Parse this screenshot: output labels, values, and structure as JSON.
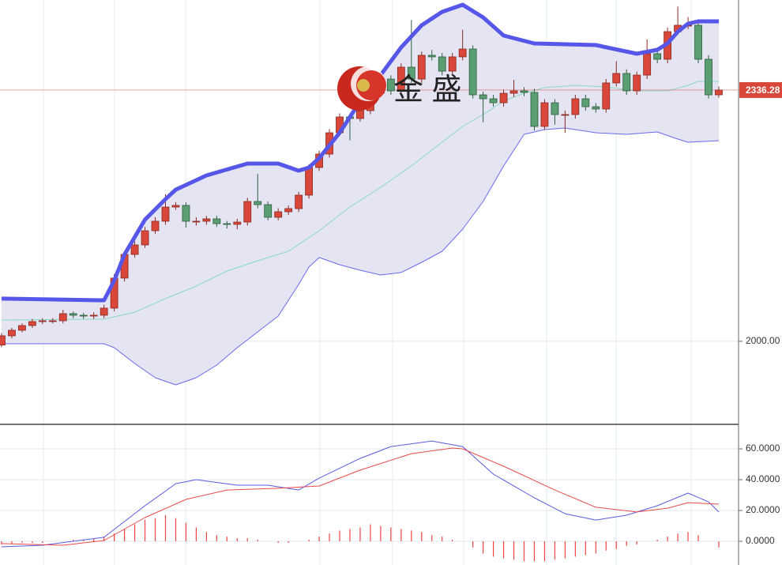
{
  "chart_data": [
    {
      "type": "candlestick",
      "watermark": "金 盛",
      "up_color": "#d9473b",
      "down_color": "#5c9e73",
      "open": [
        1995.0,
        2007.4,
        2014.8,
        2021.1,
        2026.4,
        2027.5,
        2027.5,
        2037.0,
        2034.9,
        2033.8,
        2034.9,
        2044.4,
        2084.6,
        2116.3,
        2129.0,
        2148.0,
        2160.7,
        2179.7,
        2181.9,
        2160.7,
        2160.7,
        2163.9,
        2157.5,
        2156.5,
        2159.6,
        2187.1,
        2182.9,
        2166.0,
        2173.4,
        2177.6,
        2195.6,
        2232.6,
        2250.6,
        2279.1,
        2300.3,
        2298.2,
        2308.7,
        2332.0,
        2351.0,
        2335.2,
        2366.9,
        2351.0,
        2382.8,
        2380.7,
        2361.6,
        2380.7,
        2391.2,
        2329.9,
        2324.6,
        2319.3,
        2332.0,
        2335.2,
        2333.1,
        2287.6,
        2319.3,
        2303.5,
        2303.5,
        2324.6,
        2314.0,
        2310.9,
        2345.8,
        2358.5,
        2335.2,
        2356.3,
        2384.9,
        2377.5,
        2414.5,
        2423.0,
        2423.0,
        2377.5,
        2329.9
      ],
      "high": [
        2011,
        2018,
        2024,
        2030,
        2031,
        2031,
        2042,
        2040,
        2038,
        2039,
        2049,
        2090,
        2121,
        2134,
        2153,
        2166,
        2197,
        2186,
        2186,
        2166,
        2168,
        2168,
        2161,
        2164,
        2192,
        2224,
        2187,
        2178,
        2182,
        2200,
        2237,
        2255,
        2284,
        2305,
        2305,
        2314,
        2337,
        2356,
        2356,
        2372,
        2430,
        2388,
        2390,
        2386,
        2386,
        2417,
        2396,
        2334,
        2330,
        2337,
        2350,
        2340,
        2338,
        2324,
        2324,
        2309,
        2330,
        2330,
        2319,
        2351,
        2375,
        2364,
        2361,
        2404,
        2390,
        2420,
        2448,
        2434,
        2428,
        2383,
        2341
      ],
      "low": [
        1992,
        2004,
        2012,
        2018,
        2023,
        2024,
        2024,
        2031,
        2030,
        2030,
        2031,
        2040,
        2080,
        2112,
        2125,
        2144,
        2156,
        2176,
        2152,
        2155,
        2156,
        2153,
        2151,
        2150,
        2155,
        2178,
        2162,
        2162,
        2169,
        2173,
        2191,
        2228,
        2246,
        2275,
        2269,
        2294,
        2304,
        2327,
        2330,
        2330,
        2346,
        2346,
        2376,
        2356,
        2356,
        2376,
        2325,
        2293,
        2314,
        2314,
        2327,
        2328,
        2282,
        2283,
        2290,
        2279,
        2298,
        2309,
        2306,
        2306,
        2341,
        2330,
        2330,
        2351,
        2372,
        2372,
        2410,
        2418,
        2372,
        2325,
        2326
      ],
      "close": [
        2007.4,
        2014.8,
        2021.1,
        2026.4,
        2027.5,
        2027.5,
        2037.0,
        2034.9,
        2033.8,
        2034.9,
        2044.4,
        2084.6,
        2116.3,
        2129.0,
        2148.0,
        2160.7,
        2179.7,
        2181.9,
        2160.7,
        2160.7,
        2163.9,
        2157.5,
        2156.5,
        2159.6,
        2187.1,
        2182.9,
        2166.0,
        2173.4,
        2177.6,
        2195.6,
        2232.6,
        2250.6,
        2279.1,
        2300.3,
        2298.2,
        2308.7,
        2332.0,
        2351.0,
        2335.2,
        2366.9,
        2351.0,
        2382.8,
        2380.7,
        2361.6,
        2380.7,
        2391.2,
        2329.9,
        2324.6,
        2319.3,
        2332.0,
        2335.2,
        2333.1,
        2287.6,
        2319.3,
        2303.5,
        2303.5,
        2324.6,
        2314.0,
        2310.9,
        2345.8,
        2358.5,
        2335.2,
        2356.3,
        2384.9,
        2377.5,
        2414.5,
        2423.0,
        2423.0,
        2377.5,
        2329.9,
        2336.28
      ],
      "bands": {
        "fill": "#e4e4f2",
        "upper": {
          "color": "#5656e8",
          "x": [
            0,
            10,
            11,
            12,
            14,
            16,
            17,
            20,
            24,
            27,
            29,
            30,
            31,
            33,
            35,
            37,
            39,
            41,
            43,
            45,
            47,
            49,
            52,
            58,
            62,
            64,
            65,
            66,
            67,
            68,
            70
          ],
          "values": [
            2057.1,
            2054.9,
            2081.4,
            2116.3,
            2162.8,
            2190.3,
            2203.0,
            2222.0,
            2237.9,
            2237.9,
            2228.4,
            2232.6,
            2245.3,
            2279.1,
            2321.4,
            2356.3,
            2393.3,
            2423.0,
            2440.9,
            2450.5,
            2433.5,
            2409.2,
            2398.6,
            2396.5,
            2384.9,
            2390.2,
            2398.6,
            2414.5,
            2425.1,
            2428.2,
            2428.2
          ]
        },
        "middle": {
          "color": "#8cd9c4",
          "x": [
            0,
            10,
            13,
            16,
            19,
            22,
            25,
            28,
            31,
            34,
            37,
            40,
            43,
            45,
            47,
            49,
            51,
            53,
            56,
            59,
            62,
            65,
            67,
            68,
            70
          ],
          "values": [
            2028.5,
            2029.6,
            2039.1,
            2057.1,
            2074.0,
            2094.1,
            2107.8,
            2120.5,
            2148.0,
            2179.7,
            2206.2,
            2234.7,
            2266.4,
            2287.6,
            2303.5,
            2321.4,
            2332.0,
            2339.4,
            2342.6,
            2340.5,
            2335.2,
            2335.2,
            2342.6,
            2347.9,
            2347.9
          ]
        },
        "lower": {
          "color": "#6a6aee",
          "x": [
            0,
            10,
            11,
            13,
            15,
            17,
            19,
            21,
            23,
            25,
            27,
            29,
            30,
            31,
            33,
            35,
            37,
            39,
            41,
            43,
            45,
            47,
            49,
            51,
            53,
            55,
            58,
            61,
            64,
            66,
            67,
            70
          ],
          "values": [
            1996.8,
            1996.8,
            1991.5,
            1970.3,
            1951.3,
            1941.8,
            1951.3,
            1968.2,
            1991.5,
            2012.6,
            2033.8,
            2076.1,
            2099.4,
            2112.1,
            2102.5,
            2095.1,
            2088.8,
            2092.0,
            2105.7,
            2120.5,
            2150.1,
            2187.1,
            2234.7,
            2277.0,
            2283.4,
            2285.5,
            2279.1,
            2277.0,
            2280.2,
            2270.7,
            2266.4,
            2268.6
          ]
        }
      },
      "xlim": [
        -0.15,
        71.93
      ],
      "ylim": [
        1891.0,
        2456.8
      ],
      "yticks": [
        {
          "value": 2000,
          "label": "2000.00"
        }
      ],
      "last_price": 2336.28,
      "last_price_color": "#d9473b"
    },
    {
      "type": "macd",
      "xlim": [
        -0.15,
        71.93
      ],
      "ylim": [
        -15.4,
        75.4
      ],
      "yticks": [
        {
          "value": 0,
          "label": "0.0000"
        },
        {
          "value": 20,
          "label": "20.0000"
        },
        {
          "value": 40,
          "label": "40.0000"
        },
        {
          "value": 60,
          "label": "60.0000"
        }
      ],
      "dif": {
        "color": "#5a5ae0",
        "x": [
          0,
          4,
          10,
          14,
          17,
          19,
          23,
          26,
          29,
          31,
          35,
          38,
          42,
          45,
          48,
          52,
          55,
          58,
          61,
          64,
          67,
          69,
          70
        ],
        "values": [
          -3.6,
          -2.6,
          2.6,
          23.1,
          37.4,
          40.0,
          36.4,
          36.4,
          33.3,
          41.0,
          53.8,
          61.5,
          65.1,
          61.5,
          43.6,
          28.2,
          17.9,
          13.8,
          16.9,
          23.1,
          31.3,
          25.6,
          19.0
        ]
      },
      "dea": {
        "color": "#e84a4a",
        "x": [
          0,
          6,
          10,
          14,
          18,
          22,
          27,
          31,
          35,
          40,
          44,
          45,
          49,
          54,
          58,
          62,
          65,
          67,
          70
        ],
        "values": [
          -1.5,
          -2.6,
          0.5,
          15.4,
          27.2,
          33.3,
          34.4,
          35.9,
          46.2,
          56.9,
          60.5,
          60.0,
          48.7,
          33.3,
          22.1,
          19.0,
          21.5,
          25.1,
          24.1
        ]
      },
      "histogram": {
        "color": "#ee4444",
        "values": [
          -2,
          -2,
          -1,
          -1,
          -1,
          0,
          0,
          1,
          1,
          2,
          3,
          5,
          8,
          11,
          14,
          15,
          17,
          15,
          12,
          9,
          6,
          4,
          3,
          2,
          2,
          1,
          0,
          -1,
          -1,
          0,
          1,
          3,
          5,
          7,
          8,
          9,
          11,
          10,
          9,
          8,
          7,
          6,
          4,
          3,
          1,
          0,
          -4,
          -8,
          -10,
          -11,
          -12,
          -13,
          -13,
          -13,
          -12,
          -11,
          -10,
          -9,
          -8,
          -6,
          -5,
          -3,
          -2,
          0,
          1,
          3,
          5,
          6,
          4,
          0,
          -4
        ]
      }
    }
  ]
}
